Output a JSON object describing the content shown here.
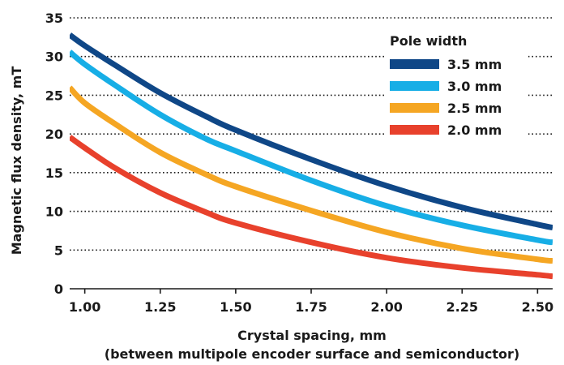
{
  "chart_data": {
    "type": "line",
    "title": "",
    "xlabel": "Crystal spacing, mm",
    "xlabel_sub": "(between multipole encoder surface and semiconductor)",
    "ylabel": "Magnetic flux density, mT",
    "xlim": [
      0.95,
      2.55
    ],
    "ylim": [
      0,
      35
    ],
    "x_ticks": [
      "1.00",
      "1.25",
      "1.50",
      "1.75",
      "2.00",
      "2.25",
      "2.50"
    ],
    "y_ticks": [
      "0",
      "5",
      "10",
      "15",
      "20",
      "25",
      "30",
      "35"
    ],
    "grid": "horizontal-dotted",
    "legend": {
      "title": "Pole width",
      "placement": "top-right"
    },
    "x": [
      0.95,
      1.0,
      1.1,
      1.25,
      1.4,
      1.5,
      1.75,
      2.0,
      2.25,
      2.5,
      2.55
    ],
    "series": [
      {
        "name": "3.5 mm",
        "color": "#0f4787",
        "values": [
          32.8,
          31.4,
          28.9,
          25.3,
          22.3,
          20.5,
          16.7,
          13.3,
          10.5,
          8.3,
          7.9
        ]
      },
      {
        "name": "3.0 mm",
        "color": "#17aee6",
        "values": [
          30.6,
          29.0,
          26.3,
          22.5,
          19.4,
          17.8,
          14.0,
          10.7,
          8.2,
          6.3,
          6.0
        ]
      },
      {
        "name": "2.5 mm",
        "color": "#f5a623",
        "values": [
          26.0,
          24.0,
          21.3,
          17.6,
          14.8,
          13.2,
          10.1,
          7.3,
          5.2,
          3.8,
          3.6
        ]
      },
      {
        "name": "2.0 mm",
        "color": "#e8412c",
        "values": [
          19.6,
          18.2,
          15.6,
          12.4,
          9.9,
          8.5,
          6.0,
          4.0,
          2.7,
          1.8,
          1.6
        ]
      }
    ]
  }
}
